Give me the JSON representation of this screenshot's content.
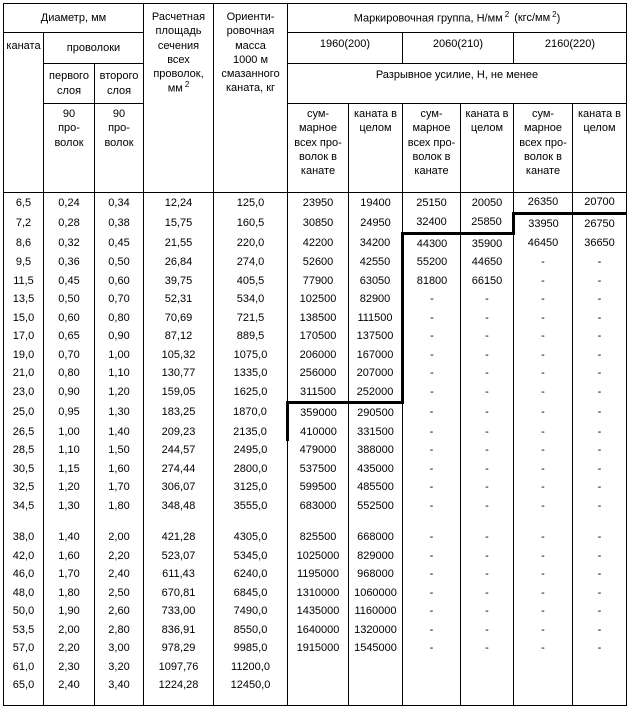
{
  "table": {
    "header": {
      "diameter_title": "Диаметр, мм",
      "rope": "каната",
      "wires": "проволоки",
      "first_layer": "первого\nслоя",
      "second_layer": "второго\nслоя",
      "wires90": "90\nпро-\nволок",
      "area": "Расчетная\nплощадь\nсечения\nвсех\nпроволок,\nмм",
      "area_sup": "2",
      "mass": "Ориенти-\nровочная\nмасса\n1000 м\nсмазанного\nканата, кг",
      "group_title": "Маркировочная группа, Н/мм",
      "group_sup1": "2",
      "group_title2": "(кгс/мм",
      "group_sup2": "2",
      "group_title3": ")",
      "groups": [
        "1960(200)",
        "2060(210)",
        "2160(220)"
      ],
      "breaking_force": "Разрывное усилие, Н, не менее",
      "sum_label": "сум-\nмарное\nвсех про-\nволок в\nканате",
      "whole_label": "каната в\nцелом"
    },
    "rows": [
      [
        "6,5",
        "0,24",
        "0,34",
        "12,24",
        "125,0",
        "23950",
        "19400",
        "25150",
        "20050",
        "26350",
        "20700"
      ],
      [
        "7,2",
        "0,28",
        "0,38",
        "15,75",
        "160,5",
        "30850",
        "24950",
        "32400",
        "25850",
        "33950",
        "26750"
      ],
      [
        "8,6",
        "0,32",
        "0,45",
        "21,55",
        "220,0",
        "42200",
        "34200",
        "44300",
        "35900",
        "46450",
        "36650"
      ],
      [
        "9,5",
        "0,36",
        "0,50",
        "26,84",
        "274,0",
        "52600",
        "42550",
        "55200",
        "44650",
        "-",
        "-"
      ],
      [
        "11,5",
        "0,45",
        "0,60",
        "39,75",
        "405,5",
        "77900",
        "63050",
        "81800",
        "66150",
        "-",
        "-"
      ],
      [
        "13,5",
        "0,50",
        "0,70",
        "52,31",
        "534,0",
        "102500",
        "82900",
        "-",
        "-",
        "-",
        "-"
      ],
      [
        "15,0",
        "0,60",
        "0,80",
        "70,69",
        "721,5",
        "138500",
        "111500",
        "-",
        "-",
        "-",
        "-"
      ],
      [
        "17,0",
        "0,65",
        "0,90",
        "87,12",
        "889,5",
        "170500",
        "137500",
        "-",
        "-",
        "-",
        "-"
      ],
      [
        "19,0",
        "0,70",
        "1,00",
        "105,32",
        "1075,0",
        "206000",
        "167000",
        "-",
        "-",
        "-",
        "-"
      ],
      [
        "21,0",
        "0,80",
        "1,10",
        "130,77",
        "1335,0",
        "256000",
        "207000",
        "-",
        "-",
        "-",
        "-"
      ],
      [
        "23,0",
        "0,90",
        "1,20",
        "159,05",
        "1625,0",
        "311500",
        "252000",
        "-",
        "-",
        "-",
        "-"
      ],
      [
        "25,0",
        "0,95",
        "1,30",
        "183,25",
        "1870,0",
        "359000",
        "290500",
        "-",
        "-",
        "-",
        "-"
      ],
      [
        "26,5",
        "1,00",
        "1,40",
        "209,23",
        "2135,0",
        "410000",
        "331500",
        "-",
        "-",
        "-",
        "-"
      ],
      [
        "28,5",
        "1,10",
        "1,50",
        "244,57",
        "2495,0",
        "479000",
        "388000",
        "-",
        "-",
        "-",
        "-"
      ],
      [
        "30,5",
        "1,15",
        "1,60",
        "274,44",
        "2800,0",
        "537500",
        "435000",
        "-",
        "-",
        "-",
        "-"
      ],
      [
        "32,5",
        "1,20",
        "1,70",
        "306,07",
        "3125,0",
        "599500",
        "485500",
        "-",
        "-",
        "-",
        "-"
      ],
      [
        "34,5",
        "1,30",
        "1,80",
        "348,48",
        "3555,0",
        "683000",
        "552500",
        "-",
        "-",
        "-",
        "-"
      ],
      [
        "38,0",
        "1,40",
        "2,00",
        "421,28",
        "4305,0",
        "825500",
        "668000",
        "-",
        "-",
        "-",
        "-"
      ],
      [
        "42,0",
        "1,60",
        "2,20",
        "523,07",
        "5345,0",
        "1025000",
        "829000",
        "-",
        "-",
        "-",
        "-"
      ],
      [
        "46,0",
        "1,70",
        "2,40",
        "611,43",
        "6240,0",
        "1195000",
        "968000",
        "-",
        "-",
        "-",
        "-"
      ],
      [
        "48,0",
        "1,80",
        "2,50",
        "670,81",
        "6845,0",
        "1310000",
        "1060000",
        "-",
        "-",
        "-",
        "-"
      ],
      [
        "50,0",
        "1,90",
        "2,60",
        "733,00",
        "7490,0",
        "1435000",
        "1160000",
        "-",
        "-",
        "-",
        "-"
      ],
      [
        "53,5",
        "2,00",
        "2,80",
        "836,91",
        "8550,0",
        "1640000",
        "1320000",
        "-",
        "-",
        "-",
        "-"
      ],
      [
        "57,0",
        "2,20",
        "3,00",
        "978,29",
        "9985,0",
        "1915000",
        "1545000",
        "-",
        "-",
        "-",
        "-"
      ],
      [
        "61,0",
        "2,30",
        "3,20",
        "1097,76",
        "11200,0",
        "",
        "",
        "",
        "",
        "",
        ""
      ],
      [
        "65,0",
        "2,40",
        "3,40",
        "1224,28",
        "12450,0",
        "",
        "",
        "",
        "",
        "",
        ""
      ]
    ]
  },
  "colors": {
    "text": "#000000",
    "border": "#000000",
    "background": "#ffffff"
  }
}
